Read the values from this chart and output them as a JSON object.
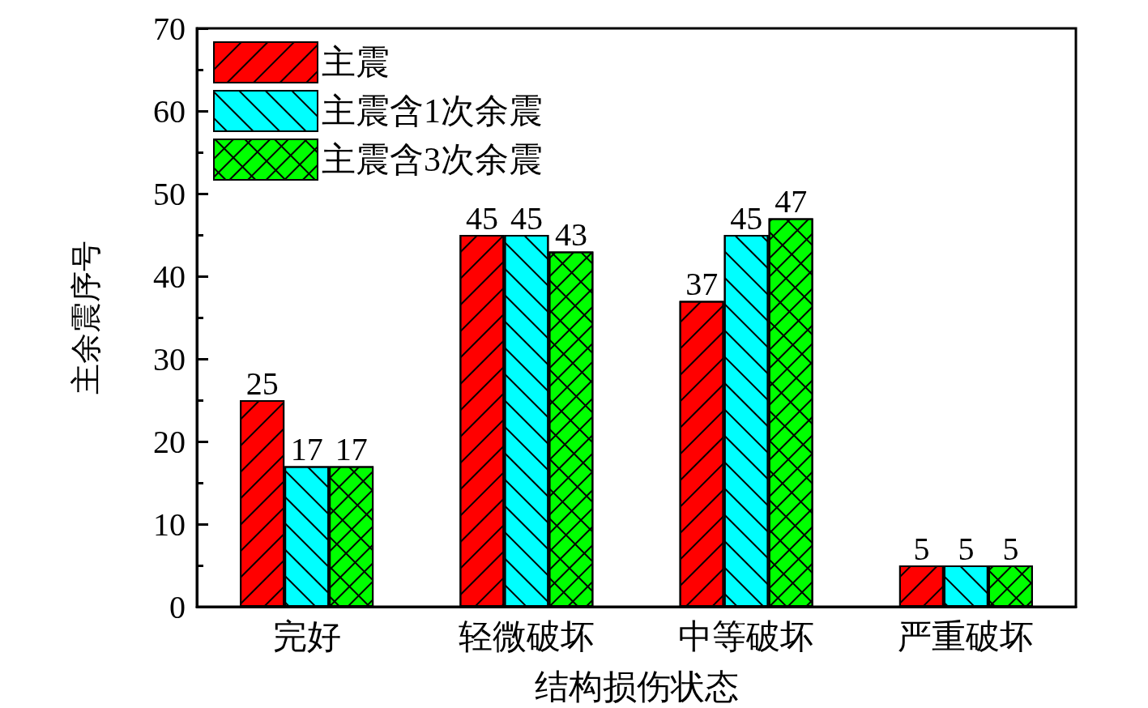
{
  "chart_data": {
    "type": "bar",
    "xlabel": "结构损伤状态",
    "ylabel": "主余震序号",
    "categories": [
      "完好",
      "轻微破坏",
      "中等破坏",
      "严重破坏"
    ],
    "series": [
      {
        "name": "主震",
        "color": "#ff0000",
        "values": [
          25,
          45,
          37,
          5
        ]
      },
      {
        "name": "主震含1次余震",
        "color": "#00ffff",
        "values": [
          17,
          45,
          45,
          5
        ]
      },
      {
        "name": "主震含3次余震",
        "color": "#00ff00",
        "values": [
          17,
          43,
          47,
          5
        ]
      }
    ],
    "ylim": [
      0,
      70
    ],
    "yticks": [
      0,
      10,
      20,
      30,
      40,
      50,
      60,
      70
    ],
    "grid": false,
    "legend": "top left",
    "data_labels": true
  }
}
